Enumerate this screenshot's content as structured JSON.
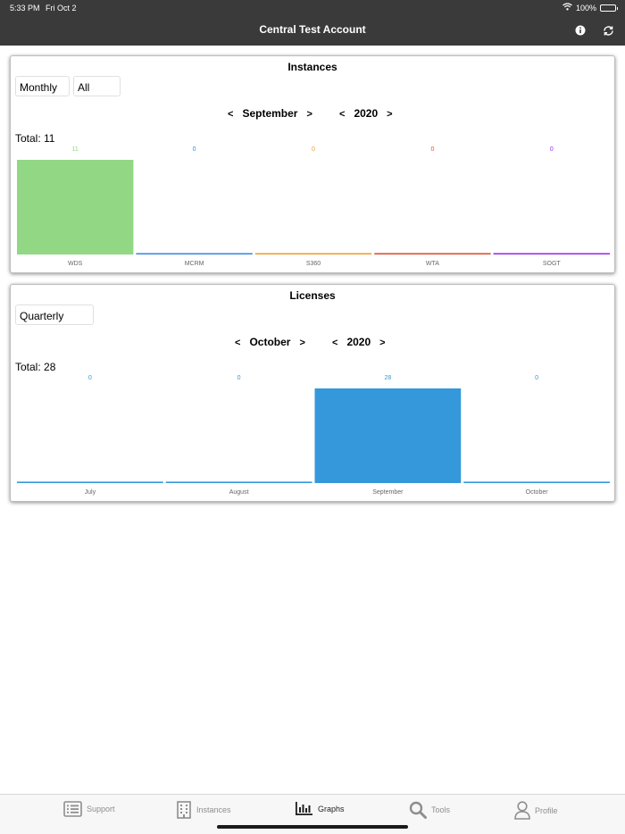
{
  "status_bar": {
    "time": "5:33 PM",
    "date": "Fri Oct 2",
    "battery": "100%"
  },
  "header": {
    "title": "Central Test Account",
    "info_icon": "info-icon",
    "refresh_icon": "refresh-icon"
  },
  "instances": {
    "title": "Instances",
    "period_dropdown": "Monthly",
    "filter_dropdown": "All",
    "prev": "<",
    "next": ">",
    "month": "September",
    "year": "2020",
    "total_label": "Total: 11",
    "chart_data": {
      "type": "bar",
      "categories": [
        "WDS",
        "MCRM",
        "S360",
        "WTA",
        "SOGT"
      ],
      "values": [
        11,
        0,
        0,
        0,
        0
      ],
      "colors": [
        "#92d784",
        "#3b8ee0",
        "#f0a030",
        "#e05030",
        "#9b30e8"
      ],
      "value_labels": [
        "11",
        "0",
        "0",
        "0",
        "0"
      ],
      "ylim": [
        0,
        11
      ]
    }
  },
  "licenses": {
    "title": "Licenses",
    "period_dropdown": "Quarterly",
    "prev": "<",
    "next": ">",
    "month": "October",
    "year": "2020",
    "total_label": "Total: 28",
    "chart_data": {
      "type": "bar",
      "categories": [
        "July",
        "August",
        "September",
        "October"
      ],
      "values": [
        0,
        0,
        28,
        0
      ],
      "colors": [
        "#3498db",
        "#3498db",
        "#3498db",
        "#3498db"
      ],
      "value_labels": [
        "0",
        "0",
        "28",
        "0"
      ],
      "ylim": [
        0,
        28
      ]
    }
  },
  "tab_bar": {
    "tabs": [
      {
        "label": "Support",
        "icon": "list-icon"
      },
      {
        "label": "Instances",
        "icon": "building-icon"
      },
      {
        "label": "Graphs",
        "icon": "bar-chart-icon",
        "active": true
      },
      {
        "label": "Tools",
        "icon": "search-icon"
      },
      {
        "label": "Profile",
        "icon": "person-icon"
      }
    ]
  }
}
